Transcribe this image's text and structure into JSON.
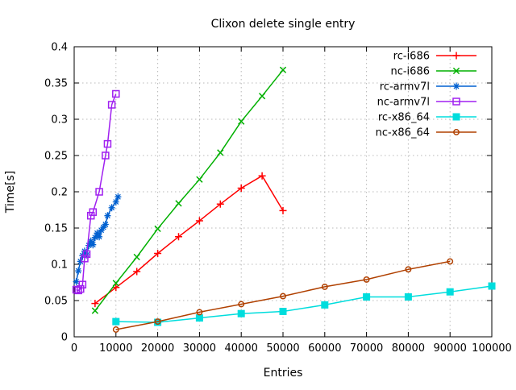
{
  "title": "Clixon delete single entry",
  "axes": {
    "xlabel": "Entries",
    "ylabel": "Time[s]",
    "xlim": [
      0,
      100000
    ],
    "ylim": [
      0,
      0.4
    ],
    "x_ticks": [
      0,
      10000,
      20000,
      30000,
      40000,
      50000,
      60000,
      70000,
      80000,
      90000,
      100000
    ],
    "x_tick_labels": [
      "0",
      "10000",
      "20000",
      "30000",
      "40000",
      "50000",
      "60000",
      "70000",
      "80000",
      "90000",
      "100000"
    ],
    "y_ticks": [
      0,
      0.05,
      0.1,
      0.15,
      0.2,
      0.25,
      0.3,
      0.35,
      0.4
    ],
    "y_tick_labels": [
      "0",
      "0.05",
      "0.1",
      "0.15",
      "0.2",
      "0.25",
      "0.3",
      "0.35",
      "0.4"
    ],
    "grid": true
  },
  "style_colors": {
    "grid": "#b8b8b8",
    "frame": "#000000",
    "background": "#ffffff"
  },
  "chart_data": {
    "type": "line",
    "legend_position": "top-right-inside",
    "series": [
      {
        "name": "rc-i686",
        "color": "#ff0000",
        "marker": "plus",
        "points": [
          [
            5000,
            0.046
          ],
          [
            10000,
            0.068
          ],
          [
            15000,
            0.09
          ],
          [
            20000,
            0.115
          ],
          [
            25000,
            0.138
          ],
          [
            30000,
            0.16
          ],
          [
            35000,
            0.183
          ],
          [
            40000,
            0.205
          ],
          [
            45000,
            0.222
          ],
          [
            50000,
            0.174
          ]
        ]
      },
      {
        "name": "nc-i686",
        "color": "#00b000",
        "marker": "cross",
        "points": [
          [
            5000,
            0.036
          ],
          [
            10000,
            0.074
          ],
          [
            15000,
            0.11
          ],
          [
            20000,
            0.149
          ],
          [
            25000,
            0.184
          ],
          [
            30000,
            0.217
          ],
          [
            35000,
            0.254
          ],
          [
            40000,
            0.297
          ],
          [
            45000,
            0.332
          ],
          [
            50000,
            0.368
          ]
        ]
      },
      {
        "name": "rc-armv7l",
        "color": "#0060d0",
        "marker": "asterisk",
        "points": [
          [
            500,
            0.076
          ],
          [
            1000,
            0.091
          ],
          [
            1500,
            0.104
          ],
          [
            2000,
            0.112
          ],
          [
            2500,
            0.118
          ],
          [
            3000,
            0.113
          ],
          [
            3500,
            0.126
          ],
          [
            4000,
            0.132
          ],
          [
            4500,
            0.127
          ],
          [
            5000,
            0.137
          ],
          [
            5500,
            0.143
          ],
          [
            6000,
            0.138
          ],
          [
            6500,
            0.147
          ],
          [
            7000,
            0.151
          ],
          [
            7500,
            0.155
          ],
          [
            8000,
            0.167
          ],
          [
            9000,
            0.178
          ],
          [
            10000,
            0.186
          ],
          [
            10500,
            0.193
          ]
        ]
      },
      {
        "name": "nc-armv7l",
        "color": "#a020f0",
        "marker": "square-open",
        "points": [
          [
            500,
            0.065
          ],
          [
            1000,
            0.064
          ],
          [
            1500,
            0.066
          ],
          [
            2000,
            0.072
          ],
          [
            2500,
            0.108
          ],
          [
            3000,
            0.114
          ],
          [
            4000,
            0.167
          ],
          [
            4500,
            0.172
          ],
          [
            6000,
            0.2
          ],
          [
            7500,
            0.25
          ],
          [
            8000,
            0.266
          ],
          [
            9000,
            0.32
          ],
          [
            10000,
            0.335
          ]
        ]
      },
      {
        "name": "rc-x86_64",
        "color": "#00dddd",
        "marker": "square-filled",
        "points": [
          [
            10000,
            0.021
          ],
          [
            20000,
            0.02
          ],
          [
            30000,
            0.026
          ],
          [
            40000,
            0.032
          ],
          [
            50000,
            0.035
          ],
          [
            60000,
            0.044
          ],
          [
            70000,
            0.055
          ],
          [
            80000,
            0.055
          ],
          [
            90000,
            0.062
          ],
          [
            100000,
            0.07
          ]
        ]
      },
      {
        "name": "nc-x86_64",
        "color": "#b04000",
        "marker": "circle-open",
        "points": [
          [
            10000,
            0.01
          ],
          [
            20000,
            0.021
          ],
          [
            30000,
            0.034
          ],
          [
            40000,
            0.045
          ],
          [
            50000,
            0.056
          ],
          [
            60000,
            0.069
          ],
          [
            70000,
            0.079
          ],
          [
            80000,
            0.093
          ],
          [
            90000,
            0.104
          ]
        ]
      }
    ]
  }
}
